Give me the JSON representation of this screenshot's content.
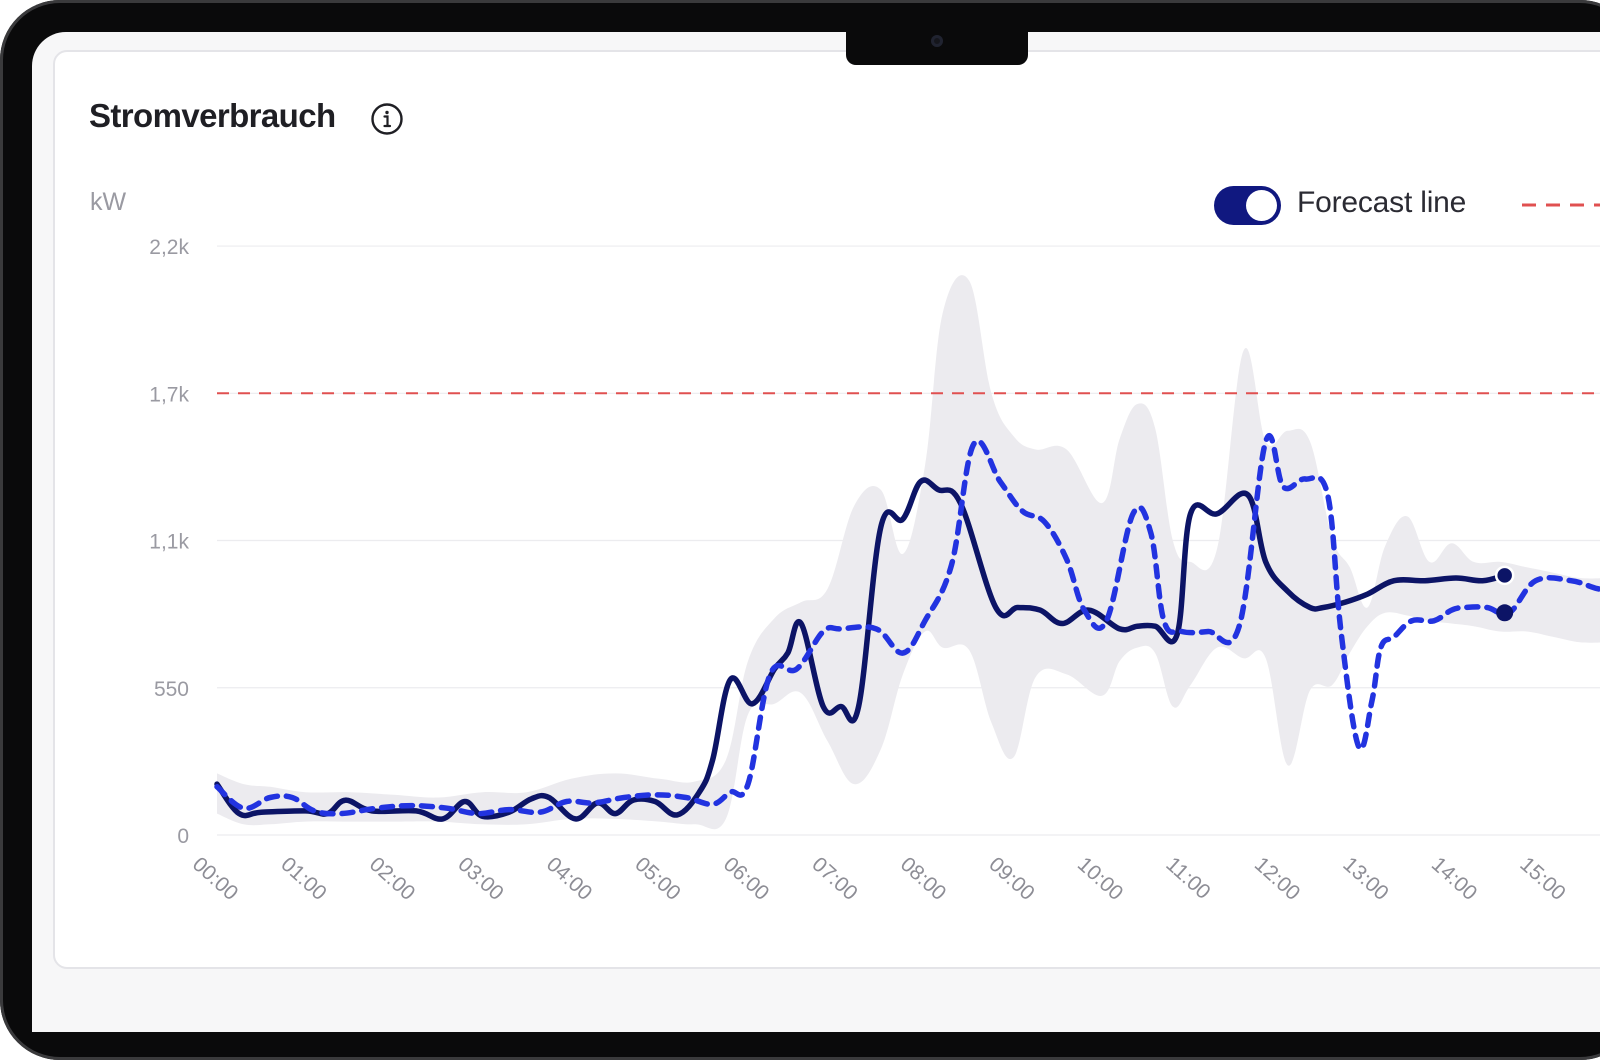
{
  "card": {
    "title": "Stromverbrauch",
    "info_icon": "info-icon",
    "unit_label": "kW"
  },
  "toggle": {
    "label": "Forecast line",
    "state": "on",
    "color": "#101880"
  },
  "colors": {
    "actual_line": "#0c1466",
    "forecast_line": "#2233e0",
    "threshold_line": "#e05050",
    "band": "#ecebef",
    "grid": "#ececef"
  },
  "chart_data": {
    "type": "line",
    "ylabel": "kW",
    "y_ticks": [
      0,
      550,
      1100,
      1650,
      2200
    ],
    "y_tick_labels": [
      "0",
      "550",
      "1,1k",
      "1,7k",
      "2,2k"
    ],
    "ylim": [
      0,
      2200
    ],
    "x_ticks": [
      "00:00",
      "01:00",
      "02:00",
      "03:00",
      "04:00",
      "05:00",
      "06:00",
      "07:00",
      "08:00",
      "09:00",
      "10:00",
      "11:00",
      "12:00",
      "13:00",
      "14:00",
      "15:00"
    ],
    "threshold": 1650,
    "grid": true,
    "series": [
      {
        "role": "actual",
        "style": "solid",
        "x": [
          0.0,
          0.25,
          0.5,
          1.0,
          1.25,
          1.45,
          1.75,
          2.25,
          2.55,
          2.8,
          3.0,
          3.3,
          3.55,
          3.75,
          4.05,
          4.3,
          4.5,
          4.7,
          4.95,
          5.2,
          5.45,
          5.6,
          5.8,
          6.05,
          6.3,
          6.45,
          6.6,
          6.85,
          7.05,
          7.25,
          7.5,
          7.75,
          7.95,
          8.15,
          8.4,
          8.8,
          9.05,
          9.3,
          9.55,
          9.85,
          10.2,
          10.4,
          10.6,
          10.85,
          11.0,
          11.3,
          11.65,
          11.85,
          12.1,
          12.35,
          12.5,
          12.75,
          13.0,
          13.3,
          13.65,
          14.0,
          14.3,
          14.55
        ],
        "y": [
          190,
          80,
          85,
          90,
          80,
          130,
          90,
          90,
          60,
          125,
          70,
          85,
          135,
          140,
          60,
          120,
          80,
          130,
          125,
          75,
          160,
          280,
          580,
          490,
          620,
          680,
          790,
          480,
          480,
          480,
          1150,
          1180,
          1320,
          1290,
          1240,
          850,
          850,
          840,
          790,
          840,
          770,
          780,
          780,
          750,
          1200,
          1200,
          1270,
          1020,
          910,
          850,
          850,
          870,
          900,
          950,
          950,
          960,
          950,
          970
        ]
      },
      {
        "role": "forecast",
        "style": "dashed",
        "x": [
          0.0,
          0.3,
          0.6,
          0.85,
          1.1,
          1.4,
          1.8,
          2.2,
          2.6,
          2.95,
          3.3,
          3.65,
          3.95,
          4.25,
          4.6,
          4.95,
          5.3,
          5.6,
          5.8,
          6.0,
          6.25,
          6.55,
          6.85,
          7.05,
          7.45,
          7.75,
          8.0,
          8.3,
          8.55,
          8.85,
          9.1,
          9.35,
          9.6,
          9.8,
          10.05,
          10.35,
          10.55,
          10.7,
          10.9,
          11.2,
          11.55,
          11.85,
          12.05,
          12.3,
          12.55,
          12.7,
          12.9,
          13.05,
          13.15,
          13.3,
          13.5,
          13.75,
          13.95,
          14.1,
          14.35,
          14.6,
          14.9,
          15.3,
          15.6,
          15.9
        ],
        "y": [
          180,
          100,
          140,
          140,
          90,
          80,
          100,
          110,
          100,
          80,
          95,
          85,
          125,
          120,
          140,
          150,
          140,
          115,
          160,
          190,
          600,
          620,
          760,
          770,
          770,
          680,
          800,
          1010,
          1460,
          1320,
          1210,
          1170,
          1030,
          840,
          800,
          1200,
          1130,
          800,
          760,
          760,
          780,
          1470,
          1300,
          1330,
          1270,
          760,
          330,
          500,
          700,
          740,
          800,
          800,
          840,
          850,
          850,
          830,
          950,
          950,
          920,
          900
        ]
      }
    ],
    "band": {
      "x": [
        0.0,
        0.3,
        0.6,
        1.0,
        1.5,
        2.0,
        2.5,
        3.0,
        3.5,
        4.0,
        4.5,
        5.0,
        5.4,
        5.75,
        6.0,
        6.3,
        6.6,
        6.9,
        7.2,
        7.5,
        7.75,
        8.0,
        8.2,
        8.5,
        8.75,
        9.0,
        9.25,
        9.6,
        10.0,
        10.2,
        10.4,
        10.6,
        10.8,
        11.0,
        11.3,
        11.6,
        11.85,
        12.1,
        12.35,
        12.6,
        12.8,
        13.0,
        13.2,
        13.45,
        13.7,
        13.95,
        14.2,
        14.5,
        14.8,
        15.1,
        15.4,
        15.7
      ],
      "upper": [
        230,
        190,
        180,
        160,
        160,
        150,
        140,
        160,
        160,
        210,
        230,
        210,
        200,
        280,
        650,
        810,
        870,
        920,
        1230,
        1290,
        1050,
        1380,
        1950,
        2070,
        1650,
        1490,
        1440,
        1440,
        1240,
        1480,
        1610,
        1520,
        1100,
        1020,
        1070,
        1810,
        1470,
        1510,
        1470,
        1110,
        1000,
        850,
        1080,
        1190,
        1020,
        1090,
        1020,
        1020,
        1000,
        980,
        960,
        960
      ],
      "lower": [
        80,
        40,
        40,
        50,
        50,
        50,
        50,
        40,
        40,
        60,
        60,
        50,
        40,
        60,
        450,
        490,
        530,
        350,
        190,
        320,
        600,
        760,
        700,
        690,
        420,
        290,
        590,
        600,
        520,
        650,
        700,
        680,
        480,
        560,
        700,
        660,
        660,
        260,
        540,
        560,
        680,
        780,
        830,
        820,
        800,
        790,
        780,
        760,
        760,
        740,
        720,
        720
      ]
    }
  }
}
